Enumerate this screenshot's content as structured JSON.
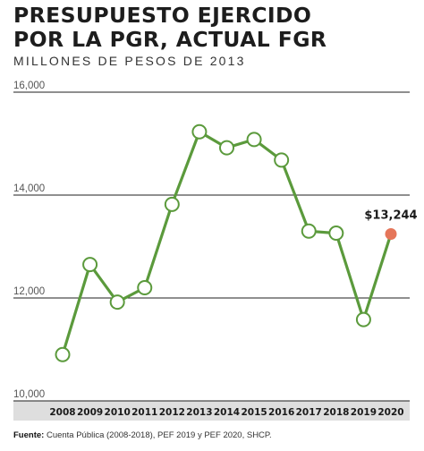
{
  "chart_data": {
    "type": "line",
    "title_lines": [
      "PRESUPUESTO EJERCIDO",
      "POR LA PGR, ACTUAL FGR"
    ],
    "subtitle": "MILLONES DE PESOS DE 2013",
    "x": [
      "2008",
      "2009",
      "2010",
      "2011",
      "2012",
      "2013",
      "2014",
      "2015",
      "2016",
      "2017",
      "2018",
      "2019",
      "2020"
    ],
    "values": [
      10900,
      12650,
      11920,
      12200,
      13820,
      15230,
      14920,
      15080,
      14680,
      13300,
      13260,
      11580,
      13244
    ],
    "highlight_label": "$13,244",
    "yticks": [
      10000,
      12000,
      14000,
      16000
    ],
    "ytick_labels": [
      "10,000",
      "12,000",
      "14,000",
      "16,000"
    ],
    "ylim": [
      10000,
      16000
    ],
    "grid": true,
    "colors": {
      "line": "#5b9a3c",
      "highlight": "#e5765a",
      "grid": "#1f1f1f",
      "band": "#dedede"
    }
  },
  "footer": {
    "label": "Fuente:",
    "text": " Cuenta Pública (2008-2018), PEF 2019 y PEF 2020, SHCP."
  }
}
